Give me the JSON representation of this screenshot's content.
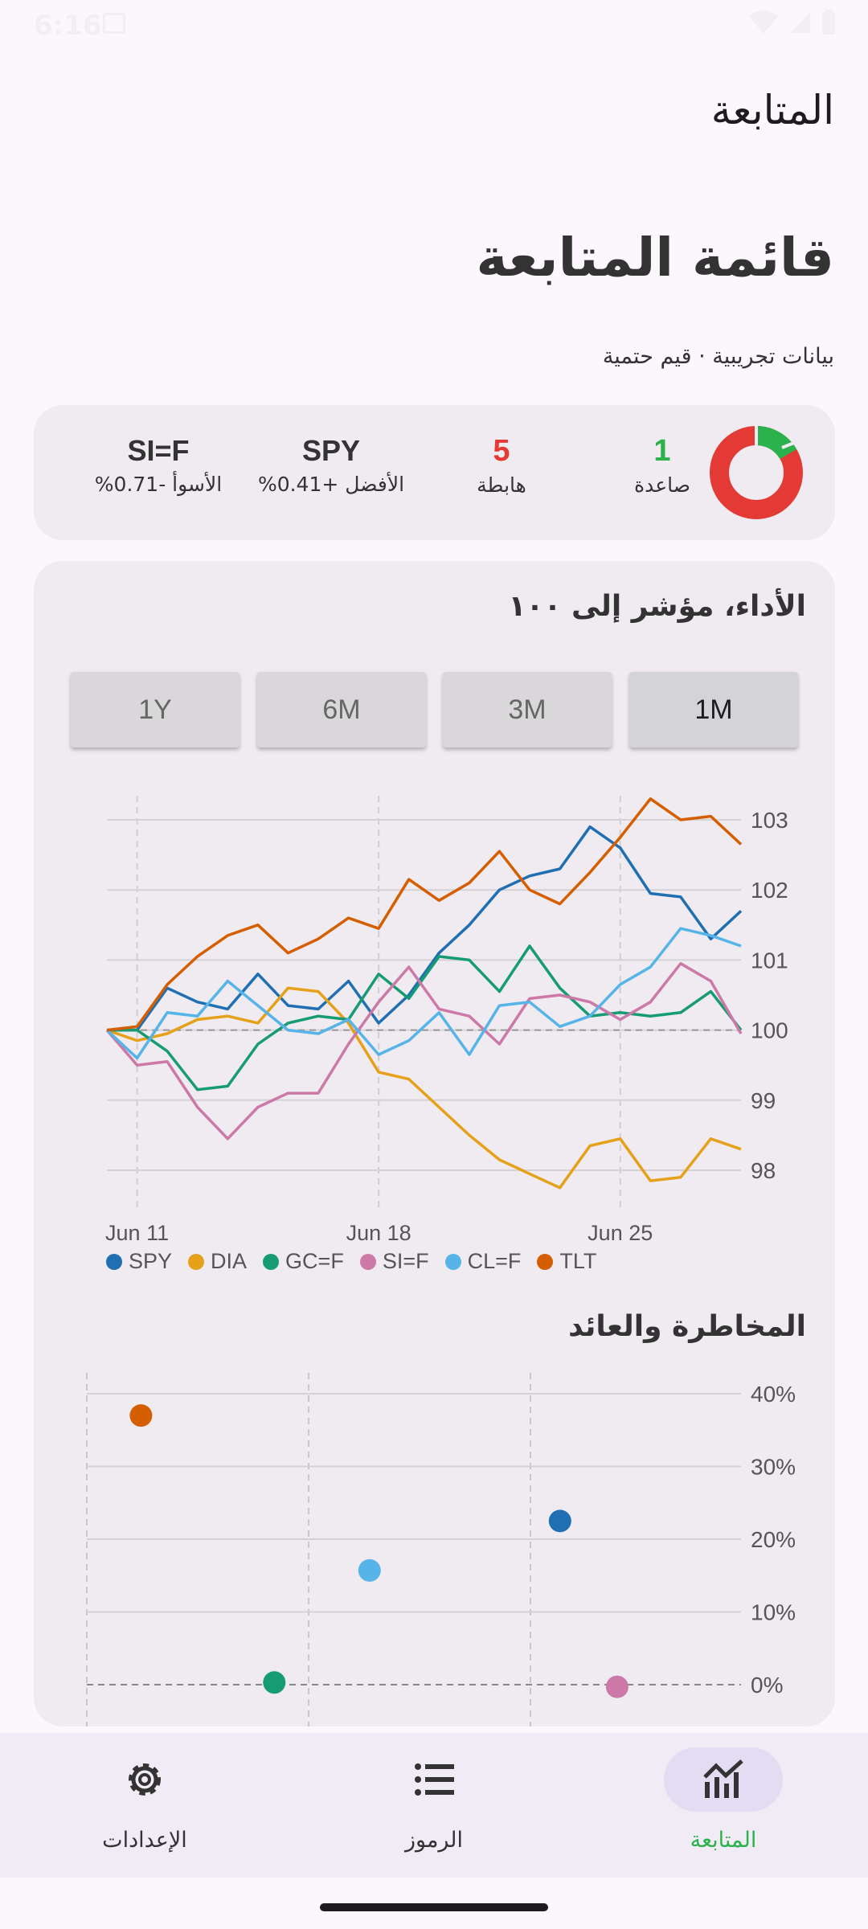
{
  "status_bar": {
    "time": "6:16"
  },
  "app_title": "المتابعة",
  "page": {
    "title": "قائمة المتابعة",
    "subtitle": "بيانات تجريبية · قيم حتمية"
  },
  "summary": {
    "up_count": "1",
    "up_label": "صاعدة",
    "down_count": "5",
    "down_label": "هابطة",
    "best_symbol": "SPY",
    "best_label": "الأفضل +0.41%",
    "worst_symbol": "SI=F",
    "worst_label": "الأسوأ -0.71%",
    "colors": {
      "up": "#2bb24c",
      "down": "#e33a36"
    }
  },
  "performance": {
    "title": "الأداء، مؤشر إلى ١٠٠",
    "ranges": [
      "1Y",
      "6M",
      "3M",
      "1M"
    ],
    "selected_range": "1M"
  },
  "risk": {
    "title": "المخاطرة والعائد"
  },
  "chart_data": [
    {
      "type": "line",
      "title": "الأداء، مؤشر إلى ١٠٠",
      "x_ticks": [
        "Jun 11",
        "Jun 18",
        "Jun 25"
      ],
      "ylim": [
        97.5,
        103.4
      ],
      "y_ticks": [
        98,
        99,
        100,
        101,
        102,
        103
      ],
      "grid": true,
      "legend": "bottom",
      "series": [
        {
          "name": "SPY",
          "color": "#1f6fb2",
          "values": [
            100.0,
            100.0,
            100.6,
            100.4,
            100.3,
            100.8,
            100.35,
            100.3,
            100.7,
            100.1,
            100.5,
            101.1,
            101.5,
            102.0,
            102.2,
            102.3,
            102.9,
            102.6,
            101.95,
            101.9,
            101.3,
            101.7
          ]
        },
        {
          "name": "DIA",
          "color": "#e6a11a",
          "values": [
            100.0,
            99.85,
            99.95,
            100.15,
            100.2,
            100.1,
            100.6,
            100.55,
            100.1,
            99.4,
            99.3,
            98.9,
            98.5,
            98.15,
            97.95,
            97.75,
            98.35,
            98.45,
            97.85,
            97.9,
            98.45,
            98.3
          ]
        },
        {
          "name": "GC=F",
          "color": "#169b72",
          "values": [
            100.0,
            100.0,
            99.7,
            99.15,
            99.2,
            99.8,
            100.1,
            100.2,
            100.15,
            100.8,
            100.45,
            101.05,
            101.0,
            100.55,
            101.2,
            100.6,
            100.2,
            100.25,
            100.2,
            100.25,
            100.55,
            100.0
          ]
        },
        {
          "name": "SI=F",
          "color": "#cc79a7",
          "values": [
            100.0,
            99.5,
            99.55,
            98.9,
            98.45,
            98.9,
            99.1,
            99.1,
            99.8,
            100.4,
            100.9,
            100.3,
            100.2,
            99.8,
            100.45,
            100.5,
            100.4,
            100.15,
            100.4,
            100.95,
            100.7,
            99.95
          ]
        },
        {
          "name": "CL=F",
          "color": "#56b4e9",
          "values": [
            100.0,
            99.6,
            100.25,
            100.2,
            100.7,
            100.35,
            100.0,
            99.95,
            100.15,
            99.65,
            99.85,
            100.25,
            99.65,
            100.35,
            100.4,
            100.05,
            100.2,
            100.65,
            100.9,
            101.45,
            101.35,
            101.2
          ]
        },
        {
          "name": "TLT",
          "color": "#d55e00",
          "values": [
            100.0,
            100.05,
            100.65,
            101.05,
            101.35,
            101.5,
            101.1,
            101.3,
            101.6,
            101.45,
            102.15,
            101.85,
            102.1,
            102.55,
            102.0,
            101.8,
            102.25,
            102.75,
            103.3,
            103.0,
            103.05,
            102.65
          ]
        }
      ]
    },
    {
      "type": "scatter",
      "title": "المخاطرة والعائد",
      "y_ticks": [
        "40%",
        "30%",
        "20%",
        "10%",
        "0%"
      ],
      "ylim": [
        -4,
        40
      ],
      "grid": true,
      "series": [
        {
          "name": "TLT",
          "color": "#d55e00",
          "x": 0.2,
          "y": 37
        },
        {
          "name": "GC=F",
          "color": "#169b72",
          "x": 0.9,
          "y": 0.3
        },
        {
          "name": "CL=F",
          "color": "#56b4e9",
          "x": 1.4,
          "y": 15.7
        },
        {
          "name": "SPY",
          "color": "#1f6fb2",
          "x": 2.4,
          "y": 22.5
        },
        {
          "name": "SI=F",
          "color": "#cc79a7",
          "x": 2.7,
          "y": -0.3
        }
      ]
    }
  ],
  "nav": {
    "items": [
      {
        "label": "الإعدادات",
        "icon": "gear-icon"
      },
      {
        "label": "الرموز",
        "icon": "list-icon"
      },
      {
        "label": "المتابعة",
        "icon": "chart-icon"
      }
    ]
  }
}
